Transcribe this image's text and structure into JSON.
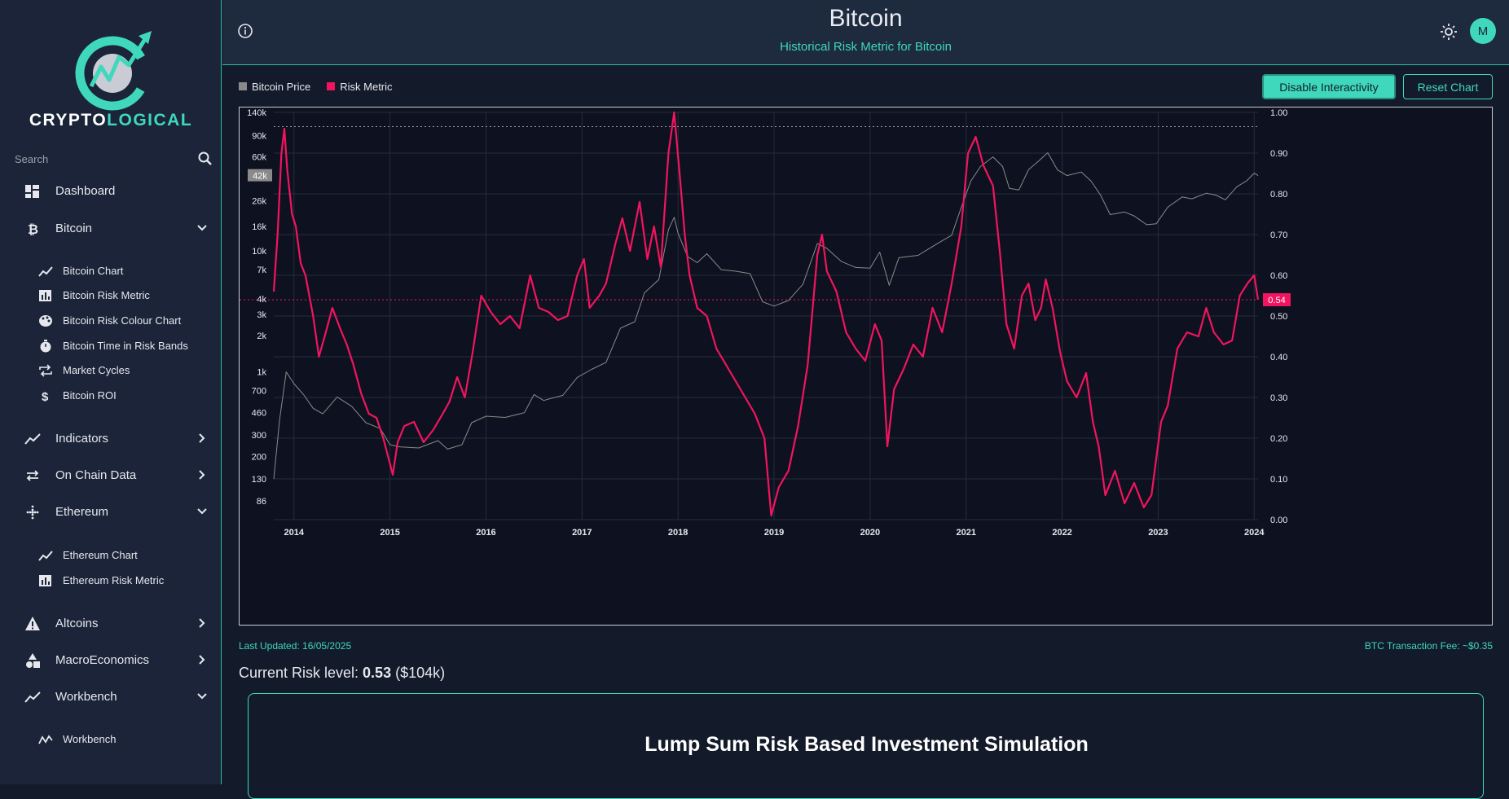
{
  "sidebar": {
    "brand": {
      "part1": "CRYPTO",
      "part2": "LOGICAL"
    },
    "search_placeholder": "Search",
    "items": [
      {
        "label": "Dashboard",
        "icon": "dashboard-icon"
      },
      {
        "label": "Bitcoin",
        "icon": "bitcoin-icon",
        "expanded": true,
        "children": [
          {
            "label": "Bitcoin Chart",
            "icon": "line-chart-icon"
          },
          {
            "label": "Bitcoin Risk Metric",
            "icon": "bar-chart-icon"
          },
          {
            "label": "Bitcoin Risk Colour Chart",
            "icon": "palette-icon"
          },
          {
            "label": "Bitcoin Time in Risk Bands",
            "icon": "stopwatch-icon"
          },
          {
            "label": "Market Cycles",
            "icon": "repeat-icon"
          },
          {
            "label": "Bitcoin ROI",
            "icon": "dollar-icon"
          }
        ]
      },
      {
        "label": "Indicators",
        "icon": "line-chart-icon",
        "expanded": false
      },
      {
        "label": "On Chain Data",
        "icon": "transfer-icon",
        "expanded": false
      },
      {
        "label": "Ethereum",
        "icon": "ethereum-icon",
        "expanded": true,
        "children": [
          {
            "label": "Ethereum Chart",
            "icon": "line-chart-icon"
          },
          {
            "label": "Ethereum Risk Metric",
            "icon": "bar-chart-icon"
          }
        ]
      },
      {
        "label": "Altcoins",
        "icon": "warning-icon",
        "expanded": false
      },
      {
        "label": "MacroEconomics",
        "icon": "shapes-icon",
        "expanded": false
      },
      {
        "label": "Workbench",
        "icon": "line-chart-icon",
        "expanded": true,
        "children": [
          {
            "label": "Workbench",
            "icon": "wave-chart-icon"
          }
        ]
      }
    ]
  },
  "header": {
    "title": "Bitcoin",
    "subtitle": "Historical Risk Metric for Bitcoin",
    "avatar_initial": "M"
  },
  "toolbar": {
    "disable_label": "Disable Interactivity",
    "reset_label": "Reset Chart"
  },
  "colors": {
    "accent": "#3fd8bc",
    "risk": "#f2145e",
    "price": "#8a8a8a",
    "panel": "#1b2438"
  },
  "chart_data": {
    "type": "line",
    "legend": [
      {
        "name": "Bitcoin Price",
        "color": "#8a8a8a"
      },
      {
        "name": "Risk Metric",
        "color": "#f2145e"
      }
    ],
    "x_ticks": [
      "2014",
      "2015",
      "2016",
      "2017",
      "2018",
      "2019",
      "2020",
      "2021",
      "2022",
      "2023",
      "2024"
    ],
    "x_range": [
      2013.79,
      2024.04
    ],
    "left_axis": {
      "scale": "log",
      "ticks": [
        "140k",
        "90k",
        "60k",
        "26k",
        "16k",
        "10k",
        "7k",
        "4k",
        "3k",
        "2k",
        "1k",
        "700",
        "460",
        "300",
        "200",
        "130",
        "86"
      ],
      "tick_values": [
        140000,
        90000,
        60000,
        26000,
        16000,
        10000,
        7000,
        4000,
        3000,
        2000,
        1000,
        700,
        460,
        300,
        200,
        130,
        86
      ],
      "range": [
        60,
        140000
      ],
      "current_label": "42k",
      "current_value": 42000
    },
    "right_axis": {
      "ticks": [
        "1.00",
        "0.90",
        "0.80",
        "0.70",
        "0.60",
        "0.50",
        "0.40",
        "0.30",
        "0.20",
        "0.10",
        "0.00"
      ],
      "range": [
        0,
        1
      ],
      "current_label": "0.54",
      "current_value": 0.54
    },
    "reference_line_top": 0.965,
    "series": [
      {
        "name": "Bitcoin Price",
        "axis": "left",
        "points": [
          [
            2013.79,
            130
          ],
          [
            2013.85,
            400
          ],
          [
            2013.92,
            1000
          ],
          [
            2014.0,
            800
          ],
          [
            2014.1,
            650
          ],
          [
            2014.2,
            500
          ],
          [
            2014.3,
            450
          ],
          [
            2014.45,
            620
          ],
          [
            2014.6,
            520
          ],
          [
            2014.75,
            380
          ],
          [
            2014.9,
            340
          ],
          [
            2015.0,
            250
          ],
          [
            2015.1,
            240
          ],
          [
            2015.3,
            235
          ],
          [
            2015.5,
            270
          ],
          [
            2015.6,
            230
          ],
          [
            2015.75,
            250
          ],
          [
            2015.85,
            380
          ],
          [
            2016.0,
            430
          ],
          [
            2016.2,
            420
          ],
          [
            2016.4,
            460
          ],
          [
            2016.5,
            650
          ],
          [
            2016.6,
            580
          ],
          [
            2016.8,
            640
          ],
          [
            2016.95,
            900
          ],
          [
            2017.1,
            1050
          ],
          [
            2017.25,
            1200
          ],
          [
            2017.4,
            2300
          ],
          [
            2017.55,
            2600
          ],
          [
            2017.65,
            4500
          ],
          [
            2017.8,
            5800
          ],
          [
            2017.9,
            15000
          ],
          [
            2017.96,
            19000
          ],
          [
            2018.0,
            14000
          ],
          [
            2018.1,
            9000
          ],
          [
            2018.2,
            8000
          ],
          [
            2018.3,
            9500
          ],
          [
            2018.45,
            7000
          ],
          [
            2018.6,
            6800
          ],
          [
            2018.75,
            6500
          ],
          [
            2018.88,
            3800
          ],
          [
            2019.0,
            3500
          ],
          [
            2019.15,
            3900
          ],
          [
            2019.3,
            5300
          ],
          [
            2019.45,
            11500
          ],
          [
            2019.55,
            10500
          ],
          [
            2019.7,
            8200
          ],
          [
            2019.85,
            7300
          ],
          [
            2020.0,
            7200
          ],
          [
            2020.1,
            9800
          ],
          [
            2020.2,
            5200
          ],
          [
            2020.3,
            8800
          ],
          [
            2020.5,
            9200
          ],
          [
            2020.7,
            11500
          ],
          [
            2020.85,
            13500
          ],
          [
            2020.95,
            23000
          ],
          [
            2021.05,
            38000
          ],
          [
            2021.15,
            50000
          ],
          [
            2021.28,
            60000
          ],
          [
            2021.38,
            50000
          ],
          [
            2021.45,
            33000
          ],
          [
            2021.55,
            32000
          ],
          [
            2021.65,
            47000
          ],
          [
            2021.75,
            55000
          ],
          [
            2021.85,
            65000
          ],
          [
            2021.95,
            47000
          ],
          [
            2022.05,
            42000
          ],
          [
            2022.2,
            45000
          ],
          [
            2022.3,
            38000
          ],
          [
            2022.4,
            29000
          ],
          [
            2022.5,
            20000
          ],
          [
            2022.65,
            21000
          ],
          [
            2022.75,
            19500
          ],
          [
            2022.88,
            16500
          ],
          [
            2022.98,
            16800
          ],
          [
            2023.1,
            23000
          ],
          [
            2023.25,
            28000
          ],
          [
            2023.35,
            27000
          ],
          [
            2023.5,
            30000
          ],
          [
            2023.6,
            29000
          ],
          [
            2023.7,
            26500
          ],
          [
            2023.82,
            34000
          ],
          [
            2023.92,
            38000
          ],
          [
            2024.0,
            44000
          ],
          [
            2024.04,
            42000
          ]
        ]
      },
      {
        "name": "Risk Metric",
        "axis": "right",
        "points": [
          [
            2013.79,
            0.56
          ],
          [
            2013.83,
            0.7
          ],
          [
            2013.87,
            0.9
          ],
          [
            2013.9,
            0.96
          ],
          [
            2013.93,
            0.86
          ],
          [
            2013.98,
            0.75
          ],
          [
            2014.02,
            0.72
          ],
          [
            2014.07,
            0.63
          ],
          [
            2014.12,
            0.6
          ],
          [
            2014.2,
            0.5
          ],
          [
            2014.26,
            0.4
          ],
          [
            2014.32,
            0.45
          ],
          [
            2014.4,
            0.52
          ],
          [
            2014.48,
            0.47
          ],
          [
            2014.55,
            0.43
          ],
          [
            2014.62,
            0.38
          ],
          [
            2014.7,
            0.31
          ],
          [
            2014.78,
            0.26
          ],
          [
            2014.86,
            0.25
          ],
          [
            2014.93,
            0.2
          ],
          [
            2015.03,
            0.11
          ],
          [
            2015.08,
            0.19
          ],
          [
            2015.15,
            0.23
          ],
          [
            2015.25,
            0.24
          ],
          [
            2015.35,
            0.19
          ],
          [
            2015.45,
            0.22
          ],
          [
            2015.55,
            0.26
          ],
          [
            2015.62,
            0.29
          ],
          [
            2015.7,
            0.35
          ],
          [
            2015.78,
            0.3
          ],
          [
            2015.86,
            0.41
          ],
          [
            2015.95,
            0.55
          ],
          [
            2016.05,
            0.51
          ],
          [
            2016.15,
            0.48
          ],
          [
            2016.25,
            0.5
          ],
          [
            2016.35,
            0.47
          ],
          [
            2016.46,
            0.6
          ],
          [
            2016.55,
            0.52
          ],
          [
            2016.65,
            0.51
          ],
          [
            2016.75,
            0.49
          ],
          [
            2016.85,
            0.5
          ],
          [
            2016.95,
            0.6
          ],
          [
            2017.02,
            0.64
          ],
          [
            2017.08,
            0.52
          ],
          [
            2017.18,
            0.55
          ],
          [
            2017.25,
            0.58
          ],
          [
            2017.35,
            0.68
          ],
          [
            2017.42,
            0.74
          ],
          [
            2017.5,
            0.66
          ],
          [
            2017.6,
            0.78
          ],
          [
            2017.68,
            0.64
          ],
          [
            2017.75,
            0.72
          ],
          [
            2017.82,
            0.62
          ],
          [
            2017.9,
            0.9
          ],
          [
            2017.96,
            1.0
          ],
          [
            2018.02,
            0.84
          ],
          [
            2018.07,
            0.7
          ],
          [
            2018.12,
            0.6
          ],
          [
            2018.2,
            0.52
          ],
          [
            2018.3,
            0.5
          ],
          [
            2018.4,
            0.42
          ],
          [
            2018.5,
            0.38
          ],
          [
            2018.6,
            0.34
          ],
          [
            2018.7,
            0.3
          ],
          [
            2018.8,
            0.26
          ],
          [
            2018.9,
            0.2
          ],
          [
            2018.97,
            0.01
          ],
          [
            2019.05,
            0.08
          ],
          [
            2019.15,
            0.12
          ],
          [
            2019.25,
            0.23
          ],
          [
            2019.35,
            0.38
          ],
          [
            2019.45,
            0.65
          ],
          [
            2019.5,
            0.7
          ],
          [
            2019.55,
            0.61
          ],
          [
            2019.65,
            0.56
          ],
          [
            2019.75,
            0.46
          ],
          [
            2019.85,
            0.42
          ],
          [
            2019.95,
            0.39
          ],
          [
            2020.05,
            0.48
          ],
          [
            2020.12,
            0.44
          ],
          [
            2020.18,
            0.18
          ],
          [
            2020.25,
            0.32
          ],
          [
            2020.35,
            0.37
          ],
          [
            2020.45,
            0.43
          ],
          [
            2020.55,
            0.4
          ],
          [
            2020.65,
            0.52
          ],
          [
            2020.75,
            0.46
          ],
          [
            2020.85,
            0.58
          ],
          [
            2020.95,
            0.72
          ],
          [
            2021.02,
            0.9
          ],
          [
            2021.1,
            0.94
          ],
          [
            2021.18,
            0.87
          ],
          [
            2021.28,
            0.82
          ],
          [
            2021.35,
            0.66
          ],
          [
            2021.42,
            0.48
          ],
          [
            2021.5,
            0.42
          ],
          [
            2021.58,
            0.55
          ],
          [
            2021.65,
            0.58
          ],
          [
            2021.72,
            0.49
          ],
          [
            2021.78,
            0.52
          ],
          [
            2021.83,
            0.59
          ],
          [
            2021.9,
            0.52
          ],
          [
            2021.98,
            0.41
          ],
          [
            2022.05,
            0.34
          ],
          [
            2022.15,
            0.3
          ],
          [
            2022.25,
            0.36
          ],
          [
            2022.32,
            0.24
          ],
          [
            2022.38,
            0.18
          ],
          [
            2022.45,
            0.06
          ],
          [
            2022.55,
            0.12
          ],
          [
            2022.65,
            0.04
          ],
          [
            2022.75,
            0.09
          ],
          [
            2022.85,
            0.03
          ],
          [
            2022.93,
            0.06
          ],
          [
            2023.03,
            0.24
          ],
          [
            2023.1,
            0.28
          ],
          [
            2023.2,
            0.42
          ],
          [
            2023.3,
            0.46
          ],
          [
            2023.42,
            0.45
          ],
          [
            2023.5,
            0.52
          ],
          [
            2023.58,
            0.46
          ],
          [
            2023.68,
            0.43
          ],
          [
            2023.77,
            0.44
          ],
          [
            2023.85,
            0.55
          ],
          [
            2023.93,
            0.58
          ],
          [
            2024.0,
            0.6
          ],
          [
            2024.04,
            0.54
          ]
        ]
      }
    ]
  },
  "footer": {
    "last_updated": "Last Updated: 16/05/2025",
    "tx_fee": "BTC Transaction Fee: ~$0.35",
    "risk_prefix": "Current Risk level: ",
    "risk_value": "0.53",
    "risk_suffix": " ($104k)",
    "sim_title": "Lump Sum Risk Based Investment Simulation"
  }
}
